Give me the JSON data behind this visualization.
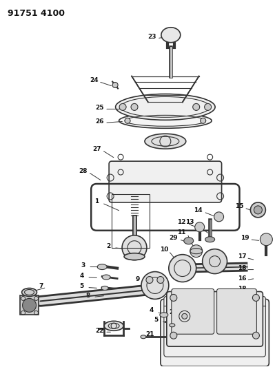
{
  "title": "91751 4100",
  "bg_color": "#ffffff",
  "line_color": "#333333",
  "label_color": "#111111",
  "fig_width": 3.99,
  "fig_height": 5.33,
  "dpi": 100
}
